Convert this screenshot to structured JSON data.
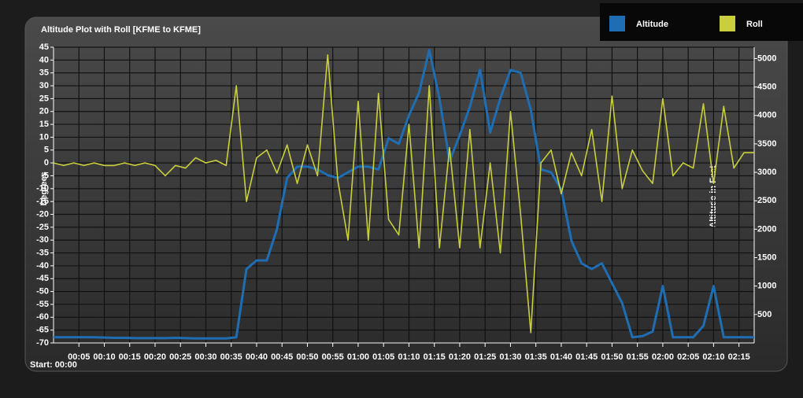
{
  "chart_data": {
    "type": "line",
    "title": "Altitude Plot with Roll [KFME to KFME]",
    "y_label": "Degrees",
    "y2_label": "Altitude in Feet",
    "start_label": "Start: 00:00",
    "x": [
      0,
      2,
      4,
      6,
      8,
      10,
      12,
      14,
      16,
      18,
      20,
      22,
      24,
      26,
      28,
      30,
      32,
      34,
      36,
      38,
      40,
      42,
      44,
      46,
      48,
      50,
      52,
      54,
      56,
      58,
      60,
      62,
      64,
      66,
      68,
      70,
      72,
      74,
      76,
      78,
      80,
      82,
      84,
      86,
      88,
      90,
      92,
      94,
      96,
      98,
      100,
      102,
      104,
      106,
      108,
      110,
      112,
      114,
      116,
      118,
      120,
      122,
      124,
      126,
      128,
      130,
      132,
      134,
      136,
      138
    ],
    "series": [
      {
        "name": "Altitude",
        "color": "#1f6db3",
        "axis": "y2",
        "values": [
          100,
          100,
          100,
          100,
          100,
          95,
          90,
          90,
          85,
          85,
          85,
          85,
          90,
          85,
          80,
          80,
          80,
          80,
          100,
          1300,
          1450,
          1450,
          2000,
          2900,
          3100,
          3100,
          3050,
          2950,
          2900,
          3000,
          3100,
          3100,
          3050,
          3600,
          3500,
          4000,
          4400,
          5150,
          4300,
          3200,
          3650,
          4150,
          4800,
          3700,
          4300,
          4800,
          4750,
          4100,
          3050,
          3000,
          2700,
          1800,
          1400,
          1300,
          1400,
          1050,
          700,
          100,
          120,
          200,
          1000,
          100,
          100,
          100,
          300,
          1000,
          100,
          100,
          100,
          100
        ]
      },
      {
        "name": "Roll",
        "color": "#c9cf3c",
        "values": [
          0,
          -1,
          0,
          -1,
          0,
          -1,
          -1,
          0,
          -1,
          0,
          -1,
          -5,
          -1,
          -2,
          2,
          0,
          1,
          -1,
          30,
          -15,
          2,
          5,
          -4,
          7,
          -8,
          7,
          -5,
          42,
          -7,
          -30,
          24,
          -30,
          27,
          -22,
          -28,
          15,
          -33,
          30,
          -33,
          6,
          -33,
          13,
          -33,
          0,
          -35,
          20,
          -20,
          -66,
          0,
          5,
          -12,
          4,
          -5,
          13,
          -15,
          26,
          -10,
          5,
          -3,
          -8,
          25,
          -5,
          0,
          -2,
          23,
          -8,
          22,
          -2,
          4,
          4
        ]
      }
    ],
    "xlim": [
      0,
      138
    ],
    "xticks": [
      {
        "value": 5,
        "label": "00:05"
      },
      {
        "value": 10,
        "label": "00:10"
      },
      {
        "value": 15,
        "label": "00:15"
      },
      {
        "value": 20,
        "label": "00:20"
      },
      {
        "value": 25,
        "label": "00:25"
      },
      {
        "value": 30,
        "label": "00:30"
      },
      {
        "value": 35,
        "label": "00:35"
      },
      {
        "value": 40,
        "label": "00:40"
      },
      {
        "value": 45,
        "label": "00:45"
      },
      {
        "value": 50,
        "label": "00:50"
      },
      {
        "value": 55,
        "label": "00:55"
      },
      {
        "value": 60,
        "label": "01:00"
      },
      {
        "value": 65,
        "label": "01:05"
      },
      {
        "value": 70,
        "label": "01:10"
      },
      {
        "value": 75,
        "label": "01:15"
      },
      {
        "value": 80,
        "label": "01:20"
      },
      {
        "value": 85,
        "label": "01:25"
      },
      {
        "value": 90,
        "label": "01:30"
      },
      {
        "value": 95,
        "label": "01:35"
      },
      {
        "value": 100,
        "label": "01:40"
      },
      {
        "value": 105,
        "label": "01:45"
      },
      {
        "value": 110,
        "label": "01:50"
      },
      {
        "value": 115,
        "label": "01:55"
      },
      {
        "value": 120,
        "label": "02:00"
      },
      {
        "value": 125,
        "label": "02:05"
      },
      {
        "value": 130,
        "label": "02:10"
      },
      {
        "value": 135,
        "label": "02:15"
      }
    ],
    "ylim": [
      -70,
      45
    ],
    "yticks": [
      45,
      40,
      35,
      30,
      25,
      20,
      15,
      10,
      5,
      0,
      -5,
      -10,
      -15,
      -20,
      -25,
      -30,
      -35,
      -40,
      -45,
      -50,
      -55,
      -60,
      -65,
      -70
    ],
    "y2lim": [
      0,
      5200
    ],
    "y2ticks": [
      500,
      1000,
      1500,
      2000,
      2500,
      3000,
      3500,
      4000,
      4500,
      5000
    ],
    "grid": true
  }
}
